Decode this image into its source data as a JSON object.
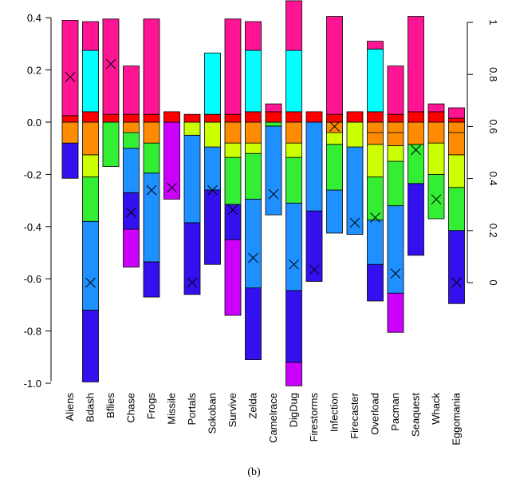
{
  "chart_data": {
    "type": "bar",
    "caption": "(b)",
    "left_axis": {
      "range": [
        -1.0,
        0.45
      ],
      "ticks": [
        -1.0,
        -0.8,
        -0.6,
        -0.4,
        -0.2,
        0.0,
        0.2,
        0.4
      ]
    },
    "right_axis": {
      "range": [
        0,
        1.0
      ],
      "ticks": [
        0,
        0.2,
        0.4,
        0.6,
        0.8,
        1
      ]
    },
    "categories": [
      "Aliens",
      "Bdash",
      "Bflies",
      "Chase",
      "Frogs",
      "Missile",
      "Portals",
      "Sokoban",
      "Survive",
      "Zelda",
      "Camelrace",
      "DigDug",
      "Firestorms",
      "Infection",
      "Firecaster",
      "Overload",
      "Pacman",
      "Seaquest",
      "Whack",
      "Eggomania"
    ],
    "segment_colors": [
      "#FF1493",
      "#00FFFF",
      "#FF0000",
      "#FF8C00",
      "#CCFF00",
      "#33EE33",
      "#1E90FF",
      "#3311EE",
      "#CC00FF"
    ],
    "stacks": [
      [
        [
          -0.215,
          -0.08,
          "#3311EE"
        ],
        [
          -0.08,
          0,
          "#FF8C00"
        ],
        [
          0,
          0.025,
          "#FF0000"
        ],
        [
          0.025,
          0.39,
          "#FF1493"
        ]
      ],
      [
        [
          -0.995,
          -0.72,
          "#3311EE"
        ],
        [
          -0.72,
          -0.38,
          "#1E90FF"
        ],
        [
          -0.38,
          -0.21,
          "#33EE33"
        ],
        [
          -0.21,
          -0.125,
          "#CCFF00"
        ],
        [
          -0.125,
          0,
          "#FF8C00"
        ],
        [
          0,
          0.04,
          "#FF0000"
        ],
        [
          0.04,
          0.275,
          "#00FFFF"
        ],
        [
          0.275,
          0.385,
          "#FF1493"
        ]
      ],
      [
        [
          -0.17,
          0,
          "#33EE33"
        ],
        [
          0,
          0.03,
          "#FF0000"
        ],
        [
          0.03,
          0.395,
          "#FF1493"
        ]
      ],
      [
        [
          -0.555,
          -0.41,
          "#CC00FF"
        ],
        [
          -0.41,
          -0.27,
          "#3311EE"
        ],
        [
          -0.27,
          -0.1,
          "#1E90FF"
        ],
        [
          -0.1,
          -0.04,
          "#33EE33"
        ],
        [
          -0.04,
          0,
          "#FF8C00"
        ],
        [
          0,
          0.03,
          "#FF0000"
        ],
        [
          0.03,
          0.215,
          "#FF1493"
        ]
      ],
      [
        [
          -0.67,
          -0.535,
          "#3311EE"
        ],
        [
          -0.535,
          -0.195,
          "#1E90FF"
        ],
        [
          -0.195,
          -0.08,
          "#33EE33"
        ],
        [
          -0.08,
          0,
          "#FF8C00"
        ],
        [
          0,
          0.03,
          "#FF0000"
        ],
        [
          0.03,
          0.395,
          "#FF1493"
        ]
      ],
      [
        [
          -0.295,
          0,
          "#CC00FF"
        ],
        [
          0,
          0.04,
          "#FF0000"
        ]
      ],
      [
        [
          -0.66,
          -0.385,
          "#3311EE"
        ],
        [
          -0.385,
          -0.05,
          "#1E90FF"
        ],
        [
          -0.05,
          0,
          "#CCFF00"
        ],
        [
          0,
          0.03,
          "#FF0000"
        ]
      ],
      [
        [
          -0.545,
          -0.26,
          "#3311EE"
        ],
        [
          -0.26,
          -0.095,
          "#1E90FF"
        ],
        [
          -0.095,
          0,
          "#CCFF00"
        ],
        [
          0,
          0.03,
          "#FF0000"
        ],
        [
          0.03,
          0.265,
          "#00FFFF"
        ]
      ],
      [
        [
          -0.74,
          -0.45,
          "#CC00FF"
        ],
        [
          -0.45,
          -0.315,
          "#3311EE"
        ],
        [
          -0.315,
          -0.135,
          "#33EE33"
        ],
        [
          -0.135,
          -0.08,
          "#CCFF00"
        ],
        [
          -0.08,
          0,
          "#FF8C00"
        ],
        [
          0,
          0.03,
          "#FF0000"
        ],
        [
          0.03,
          0.395,
          "#FF1493"
        ]
      ],
      [
        [
          -0.91,
          -0.635,
          "#3311EE"
        ],
        [
          -0.635,
          -0.295,
          "#1E90FF"
        ],
        [
          -0.295,
          -0.12,
          "#33EE33"
        ],
        [
          -0.12,
          -0.08,
          "#CCFF00"
        ],
        [
          -0.08,
          0,
          "#FF8C00"
        ],
        [
          0,
          0.04,
          "#FF0000"
        ],
        [
          0.04,
          0.275,
          "#00FFFF"
        ],
        [
          0.275,
          0.385,
          "#FF1493"
        ]
      ],
      [
        [
          -0.355,
          -0.015,
          "#1E90FF"
        ],
        [
          -0.015,
          0,
          "#33EE33"
        ],
        [
          0,
          0.04,
          "#FF0000"
        ],
        [
          0.04,
          0.07,
          "#FF1493"
        ]
      ],
      [
        [
          -1.01,
          -0.92,
          "#CC00FF"
        ],
        [
          -0.92,
          -0.645,
          "#3311EE"
        ],
        [
          -0.645,
          -0.31,
          "#1E90FF"
        ],
        [
          -0.31,
          -0.135,
          "#33EE33"
        ],
        [
          -0.135,
          -0.08,
          "#CCFF00"
        ],
        [
          -0.08,
          0,
          "#FF8C00"
        ],
        [
          0,
          0.04,
          "#FF0000"
        ],
        [
          0.04,
          0.275,
          "#00FFFF"
        ],
        [
          0.275,
          0.465,
          "#FF1493"
        ]
      ],
      [
        [
          -0.61,
          -0.34,
          "#3311EE"
        ],
        [
          -0.34,
          0,
          "#1E90FF"
        ],
        [
          0,
          0.04,
          "#FF0000"
        ]
      ],
      [
        [
          -0.425,
          -0.26,
          "#1E90FF"
        ],
        [
          -0.26,
          -0.085,
          "#33EE33"
        ],
        [
          -0.085,
          -0.04,
          "#CCFF00"
        ],
        [
          -0.04,
          0,
          "#FF8C00"
        ],
        [
          0,
          0.03,
          "#FF0000"
        ],
        [
          0.03,
          0.405,
          "#FF1493"
        ]
      ],
      [
        [
          -0.43,
          -0.095,
          "#1E90FF"
        ],
        [
          -0.095,
          0,
          "#CCFF00"
        ],
        [
          0,
          0.04,
          "#FF0000"
        ]
      ],
      [
        [
          -0.685,
          -0.545,
          "#3311EE"
        ],
        [
          -0.545,
          -0.375,
          "#1E90FF"
        ],
        [
          -0.375,
          -0.21,
          "#33EE33"
        ],
        [
          -0.21,
          -0.085,
          "#CCFF00"
        ],
        [
          -0.085,
          -0.04,
          "#FF8C00"
        ],
        [
          -0.04,
          0,
          "#FF8C00"
        ],
        [
          0,
          0.04,
          "#FF0000"
        ],
        [
          0.04,
          0.28,
          "#00FFFF"
        ],
        [
          0.28,
          0.31,
          "#FF1493"
        ]
      ],
      [
        [
          -0.805,
          -0.655,
          "#CC00FF"
        ],
        [
          -0.655,
          -0.32,
          "#1E90FF"
        ],
        [
          -0.32,
          -0.15,
          "#33EE33"
        ],
        [
          -0.15,
          -0.09,
          "#CCFF00"
        ],
        [
          -0.09,
          -0.04,
          "#FF8C00"
        ],
        [
          -0.04,
          0,
          "#FF8C00"
        ],
        [
          0,
          0.03,
          "#FF0000"
        ],
        [
          0.03,
          0.215,
          "#FF1493"
        ]
      ],
      [
        [
          -0.51,
          -0.235,
          "#3311EE"
        ],
        [
          -0.235,
          -0.085,
          "#33EE33"
        ],
        [
          -0.085,
          0,
          "#FF8C00"
        ],
        [
          0,
          0.04,
          "#FF0000"
        ],
        [
          0.04,
          0.405,
          "#FF1493"
        ]
      ],
      [
        [
          -0.37,
          -0.2,
          "#33EE33"
        ],
        [
          -0.2,
          -0.08,
          "#CCFF00"
        ],
        [
          -0.08,
          0,
          "#FF8C00"
        ],
        [
          0,
          0.04,
          "#FF0000"
        ],
        [
          0.04,
          0.07,
          "#FF1493"
        ]
      ],
      [
        [
          -0.695,
          -0.415,
          "#3311EE"
        ],
        [
          -0.415,
          -0.25,
          "#33EE33"
        ],
        [
          -0.25,
          -0.125,
          "#CCFF00"
        ],
        [
          -0.125,
          -0.04,
          "#FF8C00"
        ],
        [
          -0.04,
          0,
          "#FF8C00"
        ],
        [
          0,
          0.015,
          "#FF0000"
        ],
        [
          0.015,
          0.055,
          "#FF1493"
        ]
      ]
    ],
    "x_markers": [
      0.79,
      0.0,
      0.84,
      0.27,
      0.355,
      0.365,
      0.0,
      0.355,
      0.28,
      0.095,
      0.34,
      0.07,
      0.05,
      0.6,
      0.23,
      0.25,
      0.035,
      0.51,
      0.32,
      0.0
    ]
  }
}
